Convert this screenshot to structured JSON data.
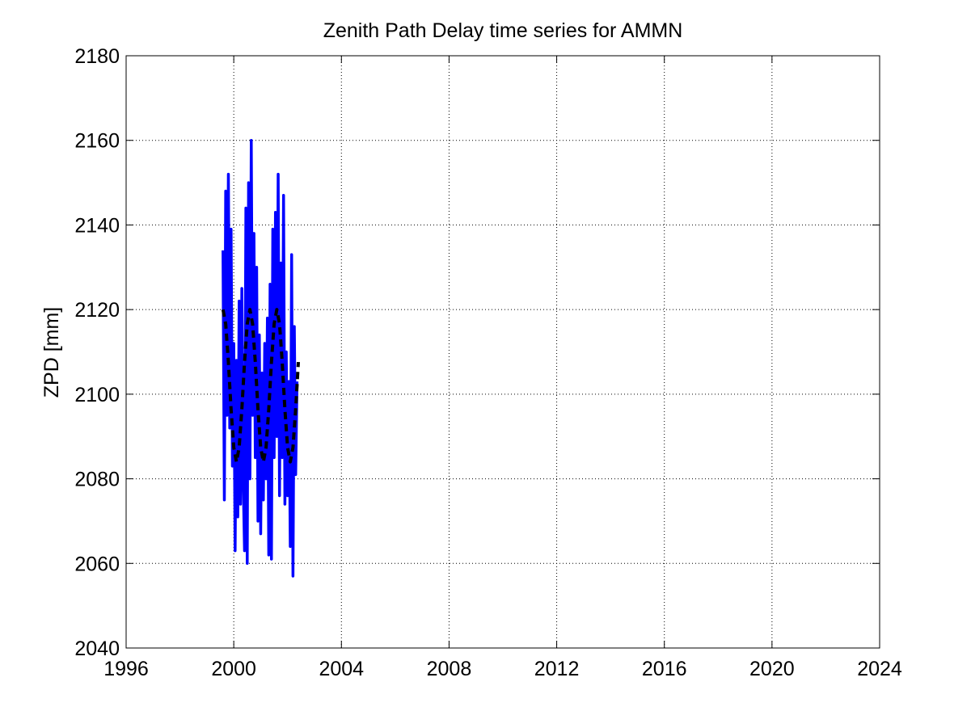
{
  "chart_data": {
    "type": "line",
    "title": "Zenith Path Delay time series for AMMN",
    "ylabel": "ZPD [mm]",
    "xlim": [
      1996,
      2024
    ],
    "xticks": [
      1996,
      2000,
      2004,
      2008,
      2012,
      2016,
      2020,
      2024
    ],
    "ylim": [
      2040,
      2180
    ],
    "yticks": [
      2040,
      2060,
      2080,
      2100,
      2120,
      2140,
      2160,
      2180
    ],
    "grid": true,
    "series": [
      {
        "color": "#0000ff",
        "line_style": "solid",
        "x": [
          1999.6,
          1999.65,
          1999.7,
          1999.75,
          1999.8,
          1999.85,
          1999.9,
          1999.95,
          2000.0,
          2000.05,
          2000.1,
          2000.15,
          2000.2,
          2000.25,
          2000.3,
          2000.35,
          2000.4,
          2000.45,
          2000.5,
          2000.55,
          2000.6,
          2000.65,
          2000.7,
          2000.75,
          2000.8,
          2000.85,
          2000.9,
          2000.95,
          2001.0,
          2001.05,
          2001.1,
          2001.15,
          2001.2,
          2001.25,
          2001.3,
          2001.35,
          2001.4,
          2001.45,
          2001.5,
          2001.55,
          2001.6,
          2001.65,
          2001.7,
          2001.75,
          2001.8,
          2001.85,
          2001.9,
          2001.95,
          2002.0,
          2002.05,
          2002.1,
          2002.15,
          2002.2,
          2002.25,
          2002.3,
          2002.35
        ],
        "values": [
          2134,
          2075,
          2148,
          2095,
          2152,
          2092,
          2139,
          2083,
          2112,
          2063,
          2108,
          2071,
          2122,
          2074,
          2125,
          2080,
          2063,
          2144,
          2060,
          2150,
          2080,
          2160,
          2095,
          2138,
          2085,
          2130,
          2070,
          2114,
          2067,
          2105,
          2075,
          2112,
          2080,
          2118,
          2062,
          2126,
          2061,
          2139,
          2085,
          2143,
          2090,
          2152,
          2076,
          2131,
          2085,
          2147,
          2074,
          2110,
          2076,
          2103,
          2064,
          2133,
          2057,
          2116,
          2081,
          2103
        ]
      },
      {
        "color": "#000000",
        "line_style": "dashed",
        "x": [
          1999.6,
          1999.7,
          1999.8,
          1999.9,
          2000.0,
          2000.1,
          2000.2,
          2000.3,
          2000.4,
          2000.5,
          2000.6,
          2000.7,
          2000.8,
          2000.9,
          2001.0,
          2001.1,
          2001.2,
          2001.3,
          2001.4,
          2001.5,
          2001.6,
          2001.7,
          2001.8,
          2001.9,
          2002.0,
          2002.1,
          2002.2,
          2002.3,
          2002.4
        ],
        "values": [
          2120,
          2116.6,
          2107.6,
          2096.4,
          2087.4,
          2084,
          2087.4,
          2096.4,
          2107.6,
          2116.6,
          2120,
          2116.6,
          2107.6,
          2096.4,
          2087.4,
          2084,
          2087.4,
          2096.4,
          2107.6,
          2116.6,
          2120,
          2116.6,
          2107.6,
          2096.4,
          2087.4,
          2084,
          2087.4,
          2096.4,
          2107.6
        ]
      }
    ]
  }
}
